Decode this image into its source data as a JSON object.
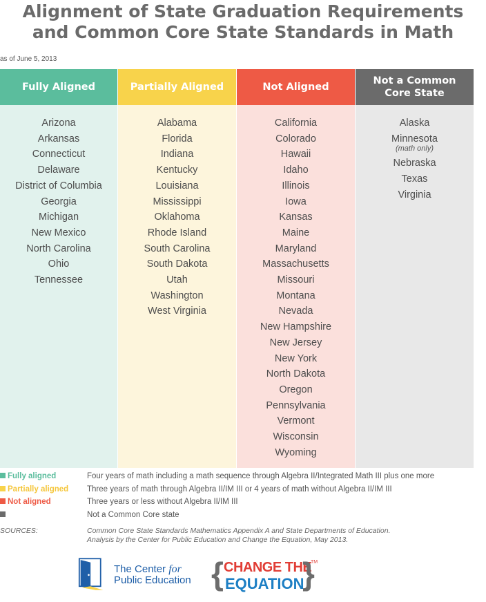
{
  "title_line1": "Alignment of State Graduation Requirements",
  "title_line2": "and Common Core State Standards in Math",
  "as_of": "as of June 5, 2013",
  "columns": [
    {
      "heading": "Fully Aligned",
      "color": "#5bbd9d",
      "bg": "#e1f2ed",
      "states": [
        "Arizona",
        "Arkansas",
        "Connecticut",
        "Delaware",
        "District of Columbia",
        "Georgia",
        "Michigan",
        "New Mexico",
        "North Carolina",
        "Ohio",
        "Tennessee"
      ]
    },
    {
      "heading": "Partially Aligned",
      "color": "#f8d34b",
      "bg": "#fdf5dc",
      "states": [
        "Alabama",
        "Florida",
        "Indiana",
        "Kentucky",
        "Louisiana",
        "Mississippi",
        "Oklahoma",
        "Rhode Island",
        "South Carolina",
        "South Dakota",
        "Utah",
        "Washington",
        "West Virginia"
      ]
    },
    {
      "heading": "Not Aligned",
      "color": "#ee5a45",
      "bg": "#fbe0dc",
      "states": [
        "California",
        "Colorado",
        "Hawaii",
        "Idaho",
        "Illinois",
        "Iowa",
        "Kansas",
        "Maine",
        "Maryland",
        "Massachusetts",
        "Missouri",
        "Montana",
        "Nevada",
        "New Hampshire",
        "New Jersey",
        "New York",
        "North Dakota",
        "Oregon",
        "Pennsylvania",
        "Vermont",
        "Wisconsin",
        "Wyoming"
      ]
    },
    {
      "heading_line1": "Not a Common",
      "heading_line2": "Core State",
      "color": "#6b6b6b",
      "bg": "#e8e8e8",
      "states": [
        "Alaska",
        "Minnesota",
        "Nebraska",
        "Texas",
        "Virginia"
      ],
      "note": "(math only)"
    }
  ],
  "legend": [
    {
      "label": "Fully aligned",
      "color": "#5bbd9d",
      "description": "Four years of math including a math sequence through Algebra II/Integrated Math III plus one more"
    },
    {
      "label": "Partially aligned",
      "color": "#f8d34b",
      "description": "Three years of math through Algebra II/IM III or 4 years of math without Algebra II/IM III"
    },
    {
      "label": "Not aligned",
      "color": "#ee5a45",
      "description": "Three years or less without Algebra II/IM III"
    },
    {
      "label": "",
      "color": "#6b6b6b",
      "description": "Not a Common Core state"
    }
  ],
  "sources_label": "SOURCES:",
  "sources_line1": "Common Core State Standards Mathematics Appendix A and State Departments of Education.",
  "sources_line2": "Analysis by the Center for Public Education and Change the Equation, May 2013.",
  "logo_cpe": {
    "line1_a": "The Center ",
    "line1_b": "for",
    "line2": "Public Education"
  },
  "logo_cte": {
    "line1": "CHANGE THE",
    "line2": "EQUATION",
    "tm": "TM"
  }
}
